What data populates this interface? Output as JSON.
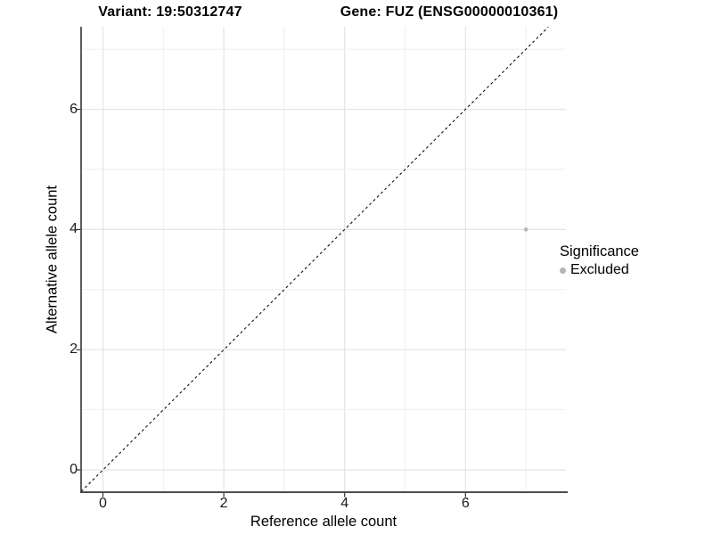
{
  "titles": {
    "left": "Variant: 19:50312747",
    "right": "Gene: FUZ (ENSG00000010361)"
  },
  "chart_data": {
    "type": "scatter",
    "xlabel": "Reference allele count",
    "ylabel": "Alternative allele count",
    "xlim": [
      -0.36,
      7.67
    ],
    "ylim": [
      -0.37,
      7.37
    ],
    "x_ticks": [
      0,
      2,
      4,
      6
    ],
    "y_ticks": [
      0,
      2,
      4,
      6
    ],
    "grid": true,
    "grid_interval": 1,
    "identity_line": {
      "equation": "y = x",
      "style": "dashed",
      "color": "#111111"
    },
    "series": [
      {
        "name": "Excluded",
        "color": "#b5b5b5",
        "points": [
          {
            "x": 7,
            "y": 4
          }
        ]
      }
    ],
    "legend": {
      "position": "right",
      "title": "Significance",
      "items": [
        {
          "label": "Excluded",
          "color": "#b5b5b5"
        }
      ]
    }
  },
  "colors": {
    "background": "#ffffff",
    "grid_major": "#e4e4e4",
    "grid_minor": "#ededed",
    "axis_line": "#333333",
    "tick_mark": "#333333",
    "point": "#b5b5b5"
  }
}
